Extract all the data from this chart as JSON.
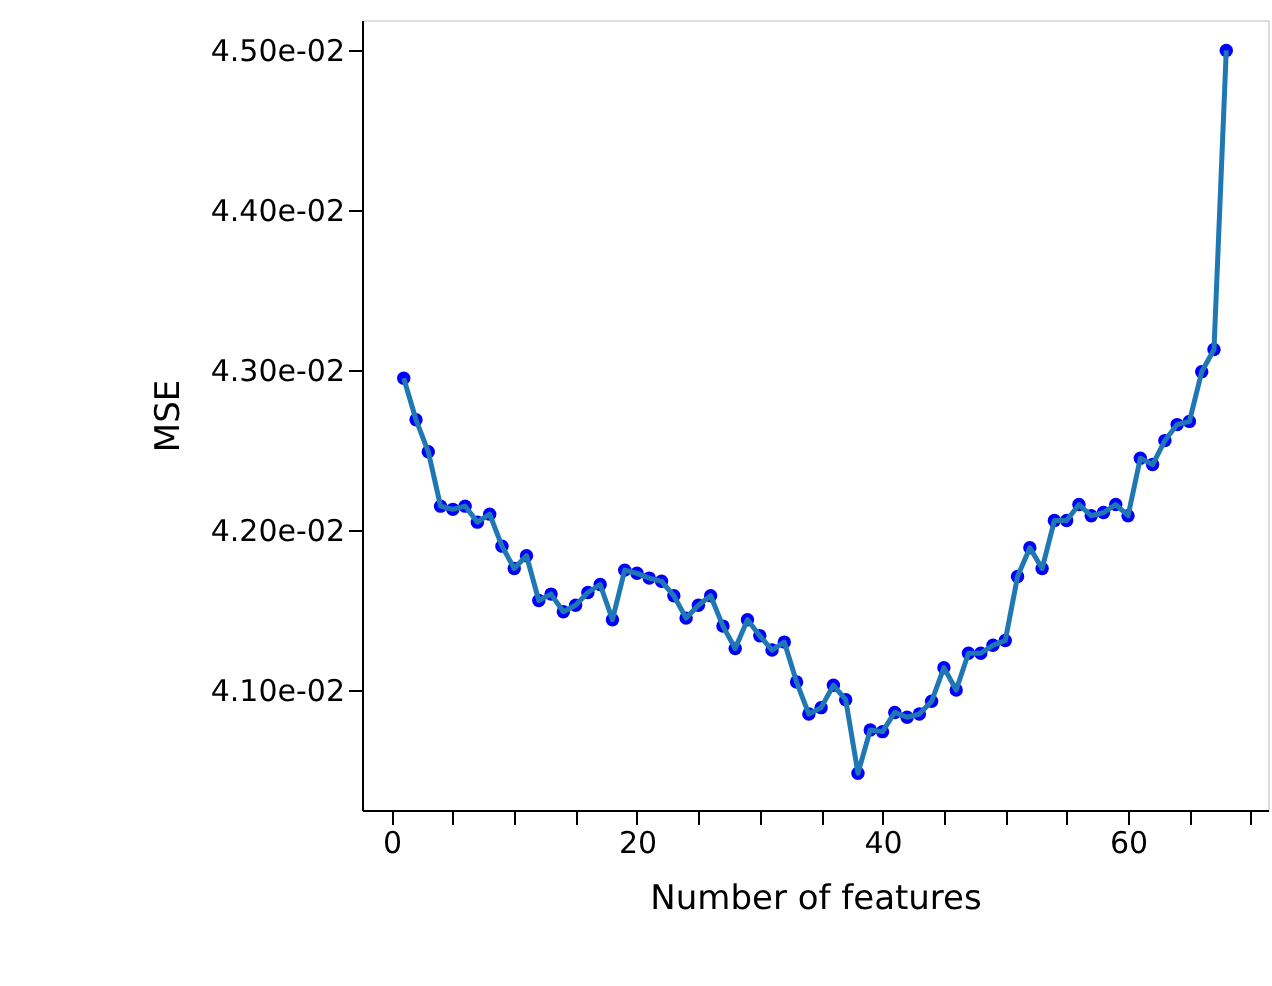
{
  "chart_data": {
    "type": "line",
    "xlabel": "Number of features",
    "ylabel": "MSE",
    "x": [
      1,
      2,
      3,
      4,
      5,
      6,
      7,
      8,
      9,
      10,
      11,
      12,
      13,
      14,
      15,
      16,
      17,
      18,
      19,
      20,
      21,
      22,
      23,
      24,
      25,
      26,
      27,
      28,
      29,
      30,
      31,
      32,
      33,
      34,
      35,
      36,
      37,
      38,
      39,
      40,
      41,
      42,
      43,
      44,
      45,
      46,
      47,
      48,
      49,
      50,
      51,
      52,
      53,
      54,
      55,
      56,
      57,
      58,
      59,
      60,
      61,
      62,
      63,
      64,
      65,
      66,
      67,
      68
    ],
    "series": [
      {
        "color": "#1f77b4",
        "values": [
          0.04295,
          0.04269,
          0.04249,
          0.04215,
          0.04213,
          0.04215,
          0.04205,
          0.0421,
          0.0419,
          0.04176,
          0.04184,
          0.04156,
          0.0416,
          0.04149,
          0.04153,
          0.04161,
          0.04166,
          0.04144,
          0.04175,
          0.04173,
          0.0417,
          0.04168,
          0.04159,
          0.04145,
          0.04153,
          0.04159,
          0.0414,
          0.04126,
          0.04144,
          0.04134,
          0.04125,
          0.0413,
          0.04105,
          0.04085,
          0.04089,
          0.04103,
          0.04094,
          0.04048,
          0.04075,
          0.04074,
          0.04086,
          0.04083,
          0.04085,
          0.04093,
          0.04114,
          0.041,
          0.04123,
          0.04123,
          0.04128,
          0.04131,
          0.04171,
          0.04189,
          0.04176,
          0.04206,
          0.04206,
          0.04216,
          0.04209,
          0.04211,
          0.04216,
          0.04209,
          0.04245,
          0.04241,
          0.04256,
          0.04266,
          0.04268,
          0.04299,
          0.04313,
          0.045
        ],
        "colors": [
          "#0000ff",
          "#0000ff",
          "#0000ff",
          "#0000ff",
          "#0000ff",
          "#0000ff",
          "#0000ff",
          "#0000ff",
          "#0000ff",
          "#0000ff",
          "#0000ff",
          "#0000ff",
          "#0000ff",
          "#0000ff",
          "#0000ff",
          "#0000ff",
          "#0000ff",
          "#0000ff",
          "#0000ff",
          "#0000ff",
          "#0000ff",
          "#0000ff",
          "#0000ff",
          "#0000ff",
          "#0000ff",
          "#0000ff",
          "#0000ff",
          "#0000ff",
          "#0000ff",
          "#0000ff",
          "#0000ff",
          "#0000ff",
          "#0000ff",
          "#0000ff",
          "#0000ff",
          "#0000ff",
          "#0000ff",
          "#0000ff",
          "#0000ff",
          "#0000ff",
          "#0000ff",
          "#0000ff",
          "#0000ff",
          "#0000ff",
          "#0000ff",
          "#0000ff",
          "#0000ff",
          "#0000ff",
          "#0000ff",
          "#0000ff",
          "#0000ff",
          "#0000ff",
          "#0000ff",
          "#0000ff",
          "#0000ff",
          "#0000ff",
          "#0000ff",
          "#0000ff",
          "#0000ff",
          "#0000ff",
          "#0000ff",
          "#0000ff",
          "#0000ff",
          "#0000ff",
          "#0000ff",
          "#0000ff",
          "#0000ff",
          "#0000ff"
        ]
      }
    ],
    "marker": "circle",
    "line_style": "solid",
    "grid": false,
    "xlim": [
      -2.4,
      71.4
    ],
    "ylim": [
      0.04025,
      0.04519
    ],
    "xticks": [
      0,
      {
        "value": 5,
        "label": null
      },
      {
        "value": 10,
        "label": null
      },
      {
        "value": 15,
        "label": null
      },
      20,
      {
        "value": 25,
        "label": null
      },
      {
        "value": 30,
        "label": null
      },
      {
        "value": 35,
        "label": null
      },
      40,
      {
        "value": 45,
        "label": null
      },
      {
        "value": 50,
        "label": null
      },
      {
        "value": 55,
        "label": null
      },
      60,
      {
        "value": 65,
        "label": null
      },
      {
        "value": 70,
        "label": null
      }
    ],
    "yticks": [
      {
        "value": 0.041,
        "label": "4.10e-02"
      },
      {
        "value": 0.042,
        "label": "4.20e-02"
      },
      {
        "value": 0.043,
        "label": "4.30e-02"
      },
      {
        "value": 0.044,
        "label": "4.40e-02"
      },
      {
        "value": 0.045,
        "label": "4.50e-02"
      }
    ]
  }
}
